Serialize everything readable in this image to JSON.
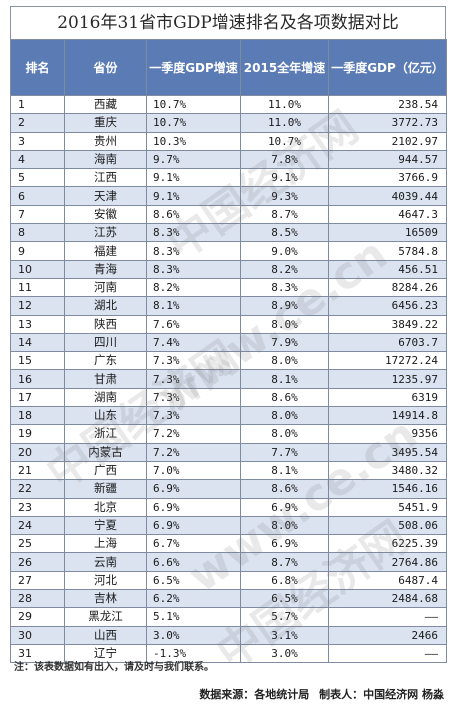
{
  "title": "2016年31省市GDP增速排名及各项数据对比",
  "headers": {
    "rank": "排名",
    "province": "省份",
    "q1_growth": "一季度GDP增速",
    "y2015_growth": "2015全年增速",
    "q1_gdp": "一季度GDP（亿元）"
  },
  "rows": [
    {
      "rank": "1",
      "province": "西藏",
      "q1": "10.7%",
      "y2015": "11.0%",
      "gdp": "238.54"
    },
    {
      "rank": "2",
      "province": "重庆",
      "q1": "10.7%",
      "y2015": "11.0%",
      "gdp": "3772.73"
    },
    {
      "rank": "3",
      "province": "贵州",
      "q1": "10.3%",
      "y2015": "10.7%",
      "gdp": "2102.97"
    },
    {
      "rank": "4",
      "province": "海南",
      "q1": "9.7%",
      "y2015": "7.8%",
      "gdp": "944.57"
    },
    {
      "rank": "5",
      "province": "江西",
      "q1": "9.1%",
      "y2015": "9.1%",
      "gdp": "3766.9"
    },
    {
      "rank": "6",
      "province": "天津",
      "q1": "9.1%",
      "y2015": "9.3%",
      "gdp": "4039.44"
    },
    {
      "rank": "7",
      "province": "安徽",
      "q1": "8.6%",
      "y2015": "8.7%",
      "gdp": "4647.3"
    },
    {
      "rank": "8",
      "province": "江苏",
      "q1": "8.3%",
      "y2015": "8.5%",
      "gdp": "16509"
    },
    {
      "rank": "9",
      "province": "福建",
      "q1": "8.3%",
      "y2015": "9.0%",
      "gdp": "5784.8"
    },
    {
      "rank": "10",
      "province": "青海",
      "q1": "8.3%",
      "y2015": "8.2%",
      "gdp": "456.51"
    },
    {
      "rank": "11",
      "province": "河南",
      "q1": "8.2%",
      "y2015": "8.3%",
      "gdp": "8284.26"
    },
    {
      "rank": "12",
      "province": "湖北",
      "q1": "8.1%",
      "y2015": "8.9%",
      "gdp": "6456.23"
    },
    {
      "rank": "13",
      "province": "陕西",
      "q1": "7.6%",
      "y2015": "8.0%",
      "gdp": "3849.22"
    },
    {
      "rank": "14",
      "province": "四川",
      "q1": "7.4%",
      "y2015": "7.9%",
      "gdp": "6703.7"
    },
    {
      "rank": "15",
      "province": "广东",
      "q1": "7.3%",
      "y2015": "8.0%",
      "gdp": "17272.24"
    },
    {
      "rank": "16",
      "province": "甘肃",
      "q1": "7.3%",
      "y2015": "8.1%",
      "gdp": "1235.97"
    },
    {
      "rank": "17",
      "province": "湖南",
      "q1": "7.3%",
      "y2015": "8.6%",
      "gdp": "6319"
    },
    {
      "rank": "18",
      "province": "山东",
      "q1": "7.3%",
      "y2015": "8.0%",
      "gdp": "14914.8"
    },
    {
      "rank": "19",
      "province": "浙江",
      "q1": "7.2%",
      "y2015": "8.0%",
      "gdp": "9356"
    },
    {
      "rank": "20",
      "province": "内蒙古",
      "q1": "7.2%",
      "y2015": "7.7%",
      "gdp": "3495.54"
    },
    {
      "rank": "21",
      "province": "广西",
      "q1": "7.0%",
      "y2015": "8.1%",
      "gdp": "3480.32"
    },
    {
      "rank": "22",
      "province": "新疆",
      "q1": "6.9%",
      "y2015": "8.6%",
      "gdp": "1546.16"
    },
    {
      "rank": "23",
      "province": "北京",
      "q1": "6.9%",
      "y2015": "6.9%",
      "gdp": "5451.9"
    },
    {
      "rank": "24",
      "province": "宁夏",
      "q1": "6.9%",
      "y2015": "8.0%",
      "gdp": "508.06"
    },
    {
      "rank": "25",
      "province": "上海",
      "q1": "6.7%",
      "y2015": "6.9%",
      "gdp": "6225.39"
    },
    {
      "rank": "26",
      "province": "云南",
      "q1": "6.6%",
      "y2015": "8.7%",
      "gdp": "2764.86"
    },
    {
      "rank": "27",
      "province": "河北",
      "q1": "6.5%",
      "y2015": "6.8%",
      "gdp": "6487.4"
    },
    {
      "rank": "28",
      "province": "吉林",
      "q1": "6.2%",
      "y2015": "6.5%",
      "gdp": "2484.68"
    },
    {
      "rank": "29",
      "province": "黑龙江",
      "q1": "5.1%",
      "y2015": "5.7%",
      "gdp": "——"
    },
    {
      "rank": "30",
      "province": "山西",
      "q1": "3.0%",
      "y2015": "3.1%",
      "gdp": "2466"
    },
    {
      "rank": "31",
      "province": "辽宁",
      "q1": "-1.3%",
      "y2015": "3.0%",
      "gdp": "——"
    }
  ],
  "note": "注：该表数据如有出入，请及时与我们联系。",
  "source": {
    "data_source": "数据来源：各地统计局",
    "maker": "制表人：中国经济网 杨淼"
  },
  "watermarks": [
    "中国经济网",
    "www.ce.cn",
    "中国经济网",
    "www.ce.cn",
    "中国经济网"
  ],
  "colors": {
    "header_bg": "#5b7bb5",
    "stripe": "#dbe3f1",
    "border": "#7f8ba1"
  }
}
